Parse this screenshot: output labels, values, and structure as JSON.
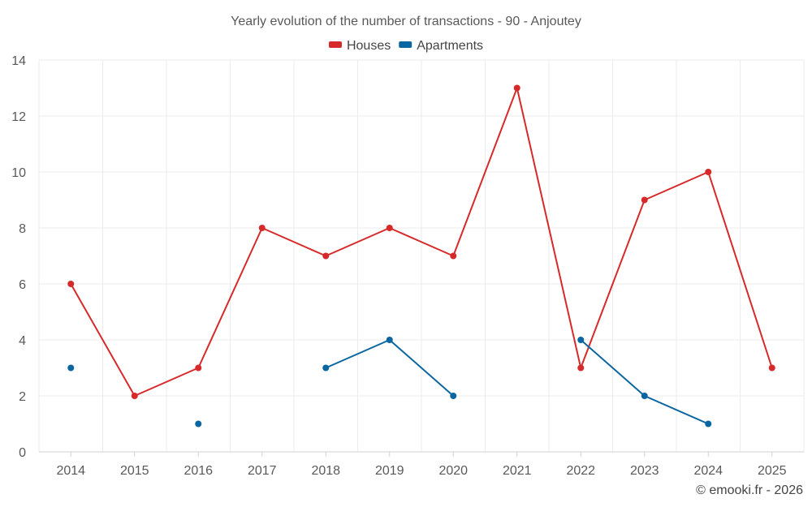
{
  "chart_data": {
    "type": "line",
    "title": "Yearly evolution of the number of transactions - 90 - Anjoutey",
    "x": [
      "2014",
      "2015",
      "2016",
      "2017",
      "2018",
      "2019",
      "2020",
      "2021",
      "2022",
      "2023",
      "2024",
      "2025"
    ],
    "series": [
      {
        "name": "Houses",
        "color": "#d62a2a",
        "values": [
          6,
          2,
          3,
          8,
          7,
          8,
          7,
          13,
          3,
          9,
          10,
          3
        ]
      },
      {
        "name": "Apartments",
        "color": "#0a66a0",
        "values": [
          3,
          null,
          1,
          null,
          3,
          4,
          2,
          null,
          4,
          2,
          1,
          null
        ]
      }
    ],
    "ylim": [
      0,
      14
    ],
    "yticks": [
      0,
      2,
      4,
      6,
      8,
      10,
      12,
      14
    ],
    "grid": true,
    "legend": "top-center",
    "xlabel": "",
    "ylabel": ""
  },
  "footer": "© emooki.fr - 2026"
}
